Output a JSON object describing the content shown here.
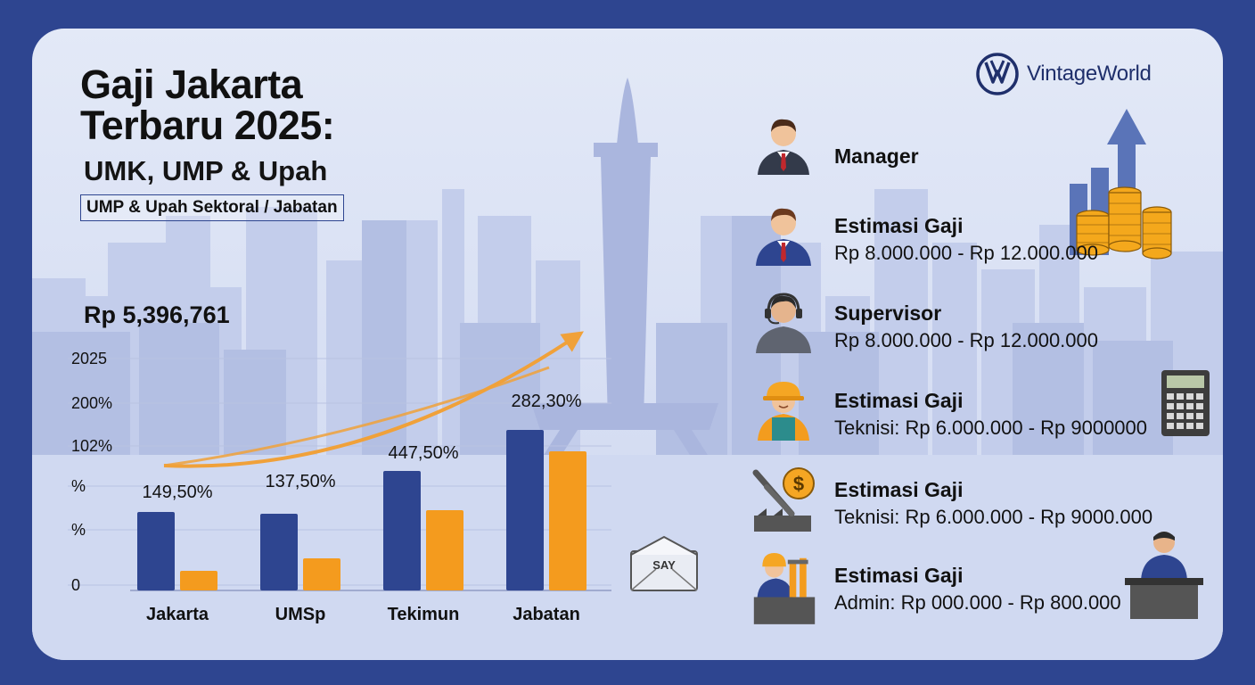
{
  "header": {
    "title_line1": "Gaji Jakarta",
    "title_line2": "Terbaru 2025:",
    "subtitle": "UMK, UMP & Upah",
    "boxed_label": "UMP & Upah Sektoral / Jabatan",
    "big_value": "Rp 5,396,761"
  },
  "brand": {
    "name": "VintageWorld",
    "icon": "vw-logo-icon"
  },
  "colors": {
    "navy": "#2e4590",
    "orange": "#f49b1e",
    "arrow": "#f0a13a",
    "background": "#dbe3f5"
  },
  "chart_data": {
    "type": "bar",
    "categories": [
      "Jakarta",
      "UMSp",
      "Tekimun",
      "Jabatan"
    ],
    "series": [
      {
        "color": "#2e4590",
        "values": [
          88,
          86,
          134,
          180
        ]
      },
      {
        "color": "#f49b1e",
        "values": [
          22,
          36,
          90,
          156
        ]
      }
    ],
    "y_tick_labels": [
      "2025",
      "200%",
      "102%",
      "%",
      "%",
      "0"
    ],
    "data_labels": [
      "149,50%",
      "137,50%",
      "447,50%",
      "282,30%"
    ],
    "grid": true,
    "legend": "none"
  },
  "envelope_label": "SAY",
  "jobs": [
    {
      "icon": "manager-icon",
      "head": "Manager",
      "body": ""
    },
    {
      "icon": "manager-icon",
      "head": "Estimasi Gaji",
      "body": "Rp 8.000.000 - Rp 12.000.000"
    },
    {
      "icon": "headset-agent-icon",
      "head": "Supervisor",
      "body": "Rp 8.000.000 - Rp 12.000.000"
    },
    {
      "icon": "worker-hardhat-icon",
      "head": "Estimasi Gaji",
      "body": "Teknisi: Rp 6.000.000 - Rp 9000000"
    },
    {
      "icon": "wrench-coin-icon",
      "head": "Estimasi Gaji",
      "body": "Teknisi: Rp 6.000.000 - Rp 9000.000"
    },
    {
      "icon": "factory-worker-icon",
      "head": "Estimasi Gaji",
      "body": "Admin: Rp 000.000 - Rp 800.000"
    }
  ]
}
